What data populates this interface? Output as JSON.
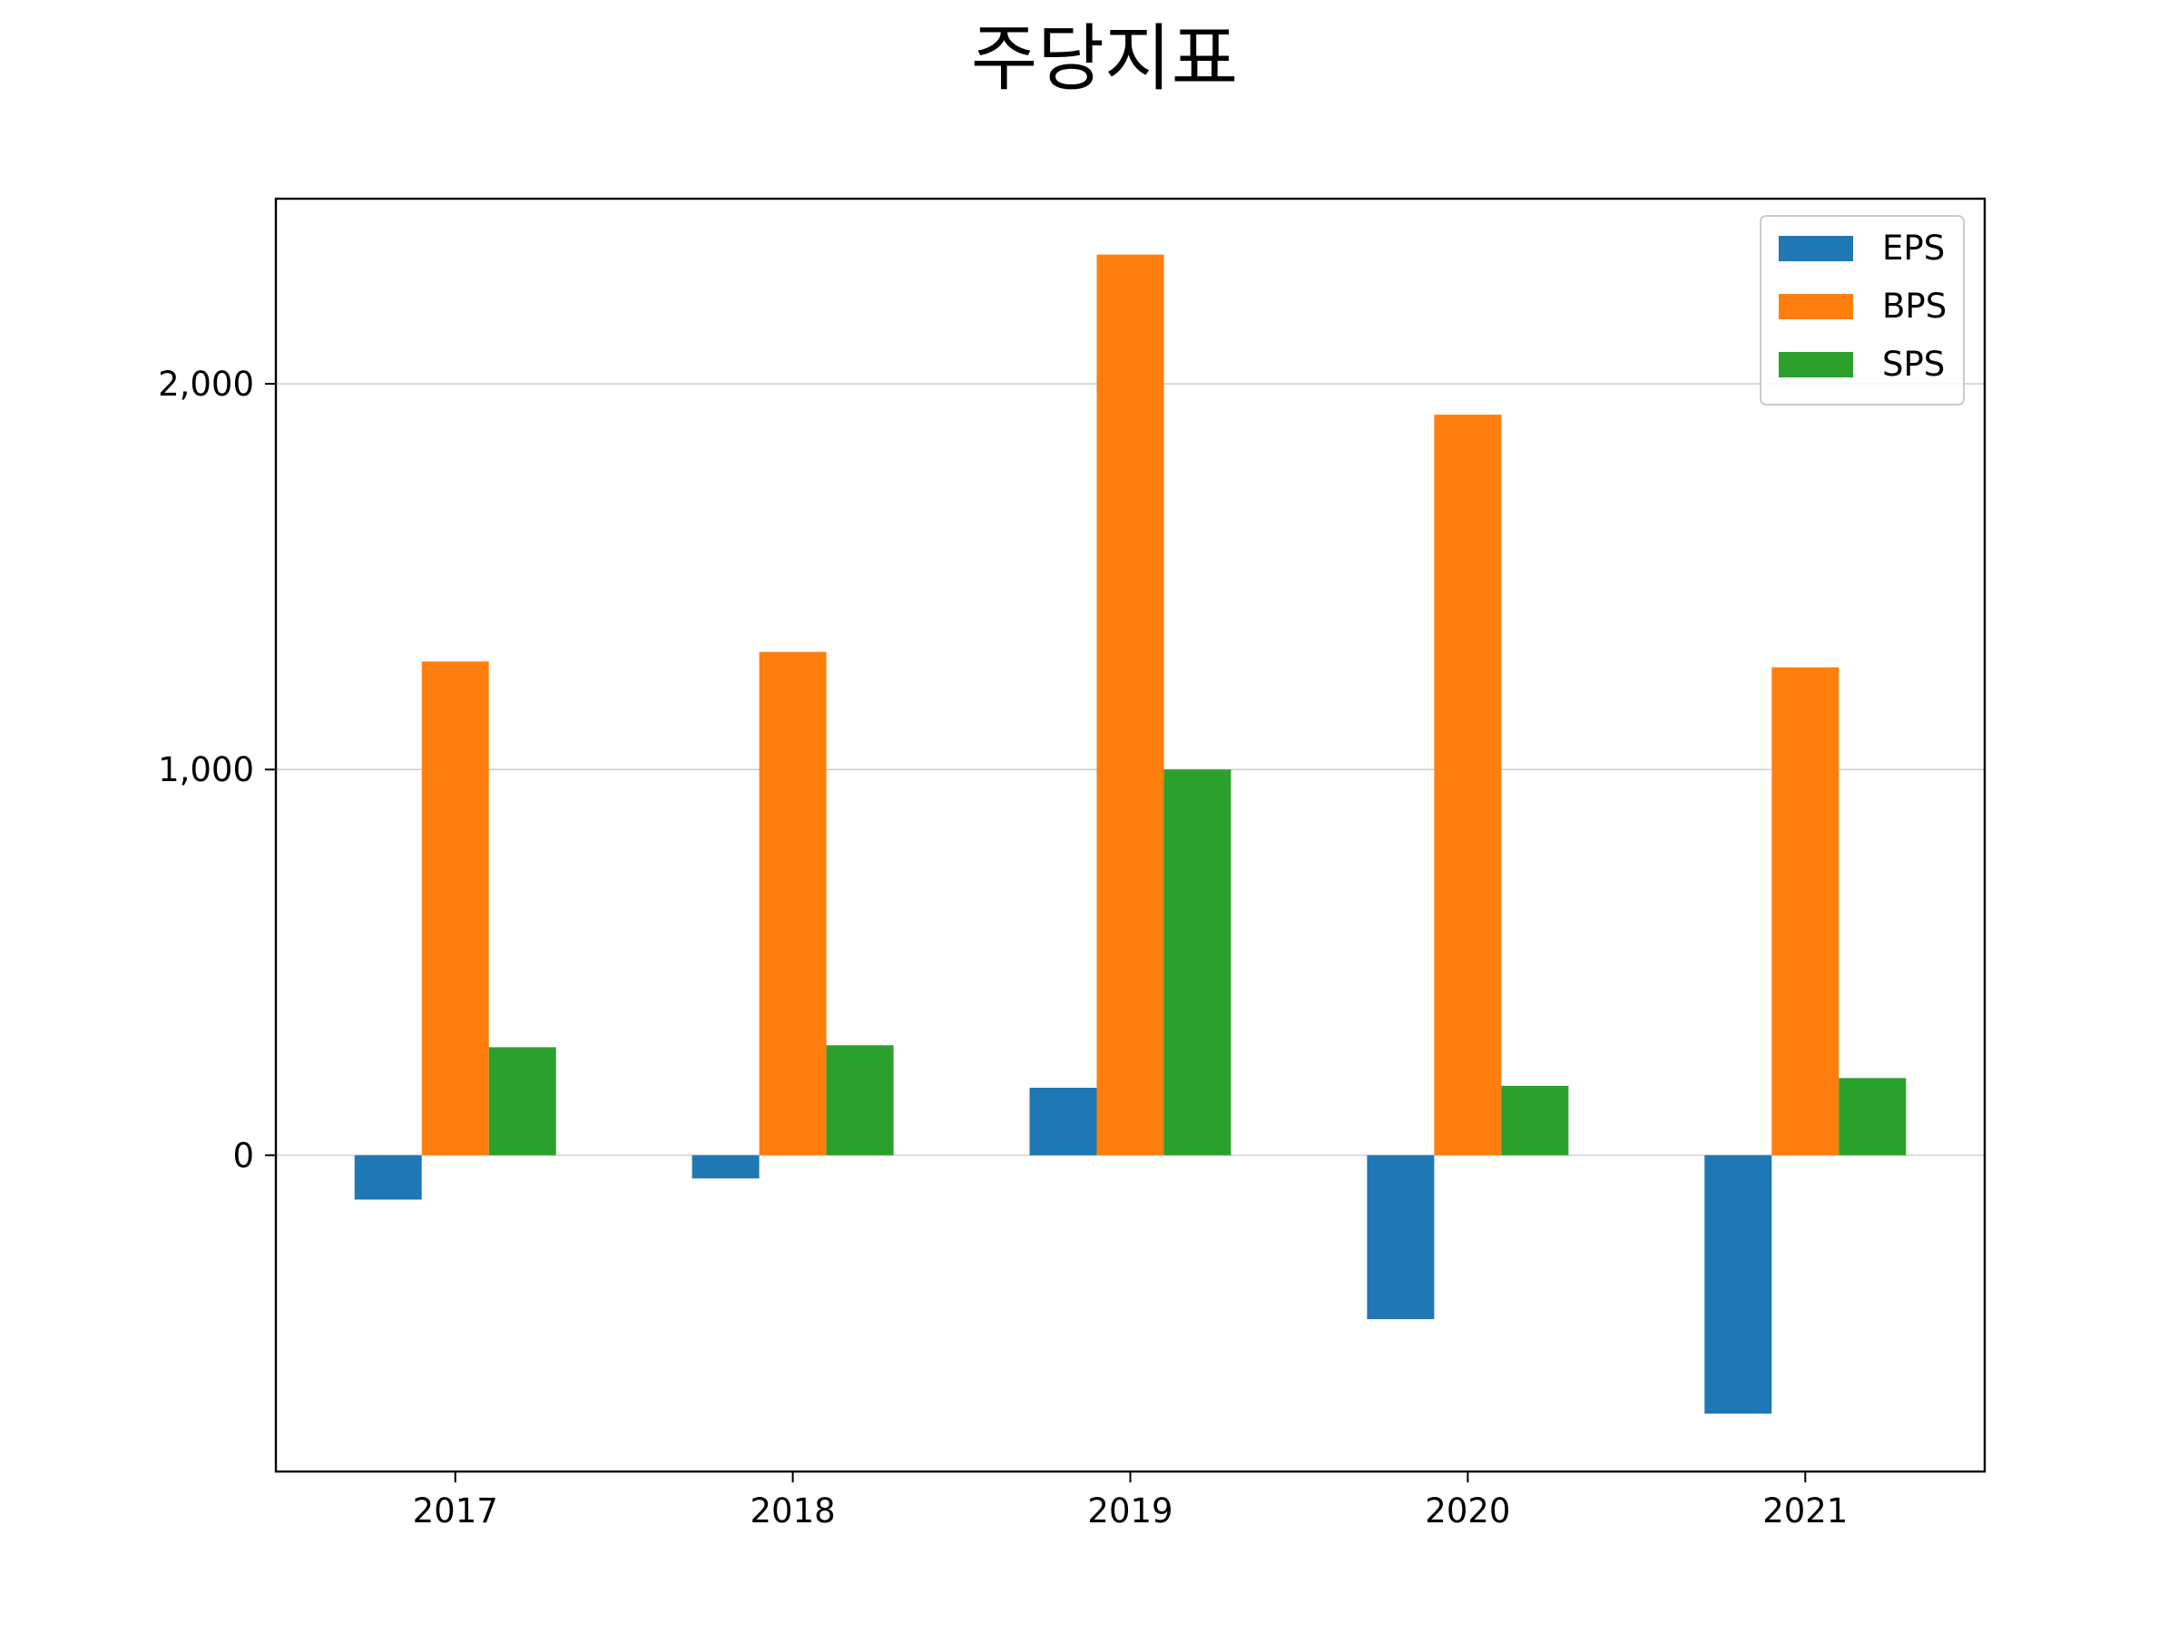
{
  "chart_data": {
    "type": "bar",
    "title": "주당지표",
    "xlabel": "",
    "ylabel": "",
    "categories": [
      "2017",
      "2018",
      "2019",
      "2020",
      "2021"
    ],
    "series": [
      {
        "name": "EPS",
        "color": "#1f77b4",
        "values": [
          -115,
          -60,
          175,
          -425,
          -670
        ]
      },
      {
        "name": "BPS",
        "color": "#ff7f0e",
        "values": [
          1280,
          1305,
          2335,
          1920,
          1265
        ]
      },
      {
        "name": "SPS",
        "color": "#2ca02c",
        "values": [
          280,
          285,
          1000,
          180,
          200
        ]
      }
    ],
    "ylim": [
      -820,
      2480
    ],
    "yticks": [
      0,
      1000,
      2000
    ],
    "ytick_labels": [
      "0",
      "1,000",
      "2,000"
    ],
    "grid": "horizontal",
    "legend_position": "top-right"
  }
}
